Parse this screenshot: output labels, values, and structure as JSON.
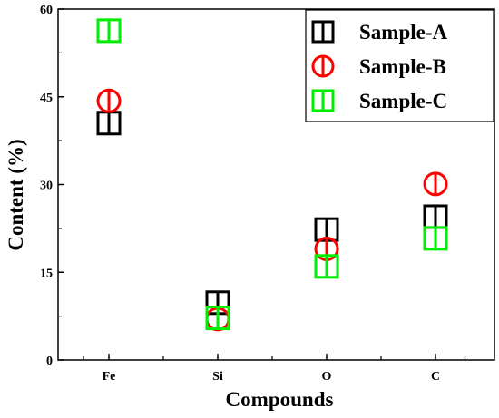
{
  "chart_data": {
    "type": "scatter",
    "categories": [
      "Fe",
      "Si",
      "O",
      "C"
    ],
    "series": [
      {
        "name": "Sample-A",
        "marker": "square-split",
        "color": "#000000",
        "values": [
          40.5,
          9.8,
          22.3,
          24.5
        ]
      },
      {
        "name": "Sample-B",
        "marker": "circle-split",
        "color": "#ff0000",
        "values": [
          44.3,
          7.0,
          19.0,
          30.1
        ]
      },
      {
        "name": "Sample-C",
        "marker": "square-split",
        "color": "#00ee00",
        "values": [
          56.3,
          7.2,
          16.0,
          20.8
        ]
      }
    ],
    "xlabel": "Compounds",
    "ylabel": "Content (%)",
    "ylim": [
      0,
      60
    ],
    "yticks": [
      "0",
      "15",
      "30",
      "45",
      "60"
    ],
    "grid": false,
    "legend": "top-right"
  }
}
